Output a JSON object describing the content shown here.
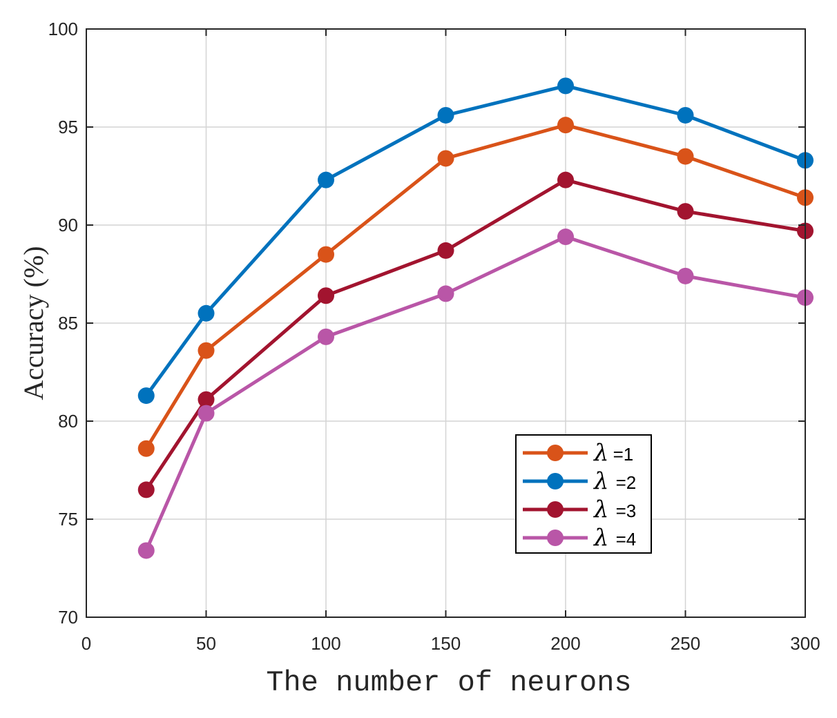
{
  "chart_data": {
    "type": "line",
    "title": "",
    "xlabel": "The number of neurons",
    "ylabel": "Accuracy (%)",
    "xlim": [
      0,
      300
    ],
    "ylim": [
      70,
      100
    ],
    "xticks": [
      0,
      50,
      100,
      150,
      200,
      250,
      300
    ],
    "yticks": [
      70,
      75,
      80,
      85,
      90,
      95,
      100
    ],
    "xtick_labels": [
      "0",
      "50",
      "100",
      "150",
      "200",
      "250",
      "300"
    ],
    "ytick_labels": [
      "70",
      "75",
      "80",
      "85",
      "90",
      "95",
      "100"
    ],
    "grid": true,
    "legend_position": "lower-right",
    "x": [
      25,
      50,
      100,
      150,
      200,
      250,
      300
    ],
    "series": [
      {
        "name": "λ =1",
        "symbol": "λ",
        "suffix": "=1",
        "color": "#D95319",
        "values": [
          78.6,
          83.6,
          88.5,
          93.4,
          95.1,
          93.5,
          91.4
        ]
      },
      {
        "name": "λ =2",
        "symbol": "λ",
        "suffix": "=2",
        "color": "#0072BD",
        "values": [
          81.3,
          85.5,
          92.3,
          95.6,
          97.1,
          95.6,
          93.3
        ]
      },
      {
        "name": "λ =3",
        "symbol": "λ",
        "suffix": "=3",
        "color": "#A2142F",
        "values": [
          76.5,
          81.1,
          86.4,
          88.7,
          92.3,
          90.7,
          89.7
        ]
      },
      {
        "name": "λ =4",
        "symbol": "λ",
        "suffix": "=4",
        "color": "#B956A7",
        "values": [
          73.4,
          80.4,
          84.3,
          86.5,
          89.4,
          87.4,
          86.3
        ]
      }
    ]
  }
}
